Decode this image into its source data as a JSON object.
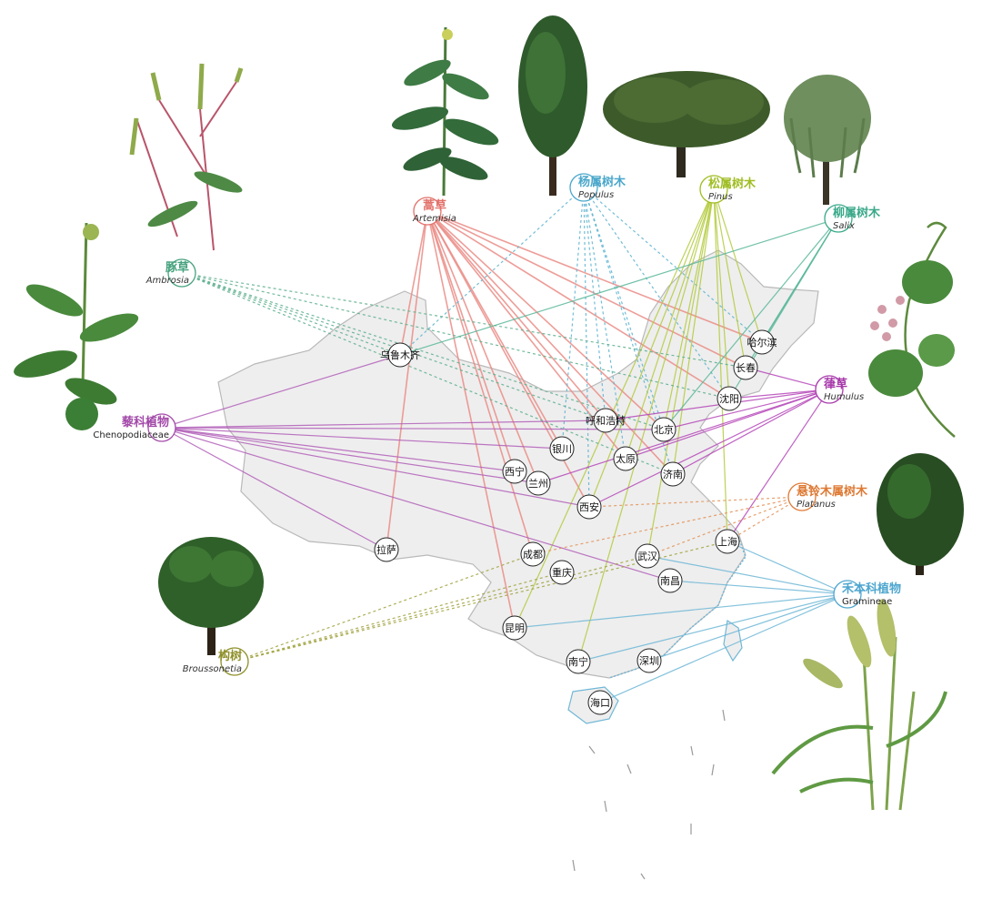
{
  "colors": {
    "artemisia": "#ea8c86",
    "populus": "#5ab1cf",
    "pinus": "#b3c93a",
    "salix": "#59b79a",
    "ambrosia": "#5aae8c",
    "chenopodiaceae": "#b25fb8",
    "humulus": "#b547b8",
    "platanus": "#e39156",
    "gramineae": "#6fb7d6",
    "broussonetia": "#a0a13c"
  },
  "plants": [
    {
      "key": "artemisia",
      "cn": "蒿草",
      "la": "Artemisia",
      "color": "#e2726b",
      "dashed": false
    },
    {
      "key": "populus",
      "cn": "杨属树木",
      "la": "Populus",
      "color": "#4aa7cb",
      "dashed": true
    },
    {
      "key": "pinus",
      "cn": "松属树木",
      "la": "Pinus",
      "color": "#9fbd22",
      "dashed": false
    },
    {
      "key": "salix",
      "cn": "柳属树木",
      "la": "Salix",
      "color": "#3aa98a",
      "dashed": false
    },
    {
      "key": "ambrosia",
      "cn": "豚草",
      "la": "Ambrosia",
      "color": "#46a27e",
      "dashed": true
    },
    {
      "key": "chenopodiaceae",
      "cn": "藜科植物",
      "la": "Chenopodiaceae",
      "color": "#a34aa9",
      "dashed": false
    },
    {
      "key": "humulus",
      "cn": "葎草",
      "la": "Humulus",
      "color": "#a83aab",
      "dashed": false
    },
    {
      "key": "platanus",
      "cn": "悬铃木属树木",
      "la": "Platanus",
      "color": "#de7a34",
      "dashed": true
    },
    {
      "key": "gramineae",
      "cn": "禾本科植物",
      "la": "Gramineae",
      "color": "#4ea6cf",
      "dashed": false
    },
    {
      "key": "broussonetia",
      "cn": "构树",
      "la": "Broussonetia",
      "color": "#8f902a",
      "dashed": true
    }
  ],
  "cities": [
    {
      "key": "urumqi",
      "name": "乌鲁木齐"
    },
    {
      "key": "harbin",
      "name": "哈尔滨"
    },
    {
      "key": "changchun",
      "name": "长春"
    },
    {
      "key": "shenyang",
      "name": "沈阳"
    },
    {
      "key": "hohhot",
      "name": "呼和浩特"
    },
    {
      "key": "beijing",
      "name": "北京"
    },
    {
      "key": "yinchuan",
      "name": "银川"
    },
    {
      "key": "taiyuan",
      "name": "太原"
    },
    {
      "key": "xining",
      "name": "西宁"
    },
    {
      "key": "lanzhou",
      "name": "兰州"
    },
    {
      "key": "jinan",
      "name": "济南"
    },
    {
      "key": "xian",
      "name": "西安"
    },
    {
      "key": "lhasa",
      "name": "拉萨"
    },
    {
      "key": "chengdu",
      "name": "成都"
    },
    {
      "key": "chongqing",
      "name": "重庆"
    },
    {
      "key": "wuhan",
      "name": "武汉"
    },
    {
      "key": "shanghai",
      "name": "上海"
    },
    {
      "key": "nanchang",
      "name": "南昌"
    },
    {
      "key": "kunming",
      "name": "昆明"
    },
    {
      "key": "nanning",
      "name": "南宁"
    },
    {
      "key": "shenzhen",
      "name": "深圳"
    },
    {
      "key": "haikou",
      "name": "海口"
    }
  ],
  "links": {
    "artemisia": [
      "urumqi",
      "harbin",
      "changchun",
      "shenyang",
      "hohhot",
      "beijing",
      "yinchuan",
      "taiyuan",
      "xining",
      "lanzhou",
      "jinan",
      "xian",
      "lhasa",
      "chengdu",
      "kunming"
    ],
    "populus": [
      "urumqi",
      "hohhot",
      "beijing",
      "yinchuan",
      "taiyuan",
      "xian",
      "harbin",
      "shenyang",
      "jinan"
    ],
    "pinus": [
      "harbin",
      "changchun",
      "shenyang",
      "beijing",
      "taiyuan",
      "jinan",
      "xian",
      "wuhan",
      "shanghai",
      "kunming",
      "nanning"
    ],
    "salix": [
      "urumqi",
      "harbin",
      "changchun",
      "shenyang",
      "beijing"
    ],
    "ambrosia": [
      "beijing",
      "shenyang",
      "changchun",
      "hohhot",
      "jinan",
      "urumqi"
    ],
    "chenopodiaceae": [
      "urumqi",
      "hohhot",
      "yinchuan",
      "xining",
      "lanzhou",
      "lhasa",
      "xian",
      "beijing",
      "nanchang"
    ],
    "humulus": [
      "hohhot",
      "beijing",
      "jinan",
      "xian",
      "taiyuan",
      "shenyang",
      "shanghai",
      "changchun",
      "lanzhou"
    ],
    "platanus": [
      "shanghai",
      "wuhan",
      "chengdu",
      "xian"
    ],
    "gramineae": [
      "shanghai",
      "nanchang",
      "kunming",
      "nanning",
      "shenzhen",
      "haikou",
      "wuhan"
    ],
    "broussonetia": [
      "wuhan",
      "chengdu",
      "chongqing",
      "shanghai"
    ]
  }
}
